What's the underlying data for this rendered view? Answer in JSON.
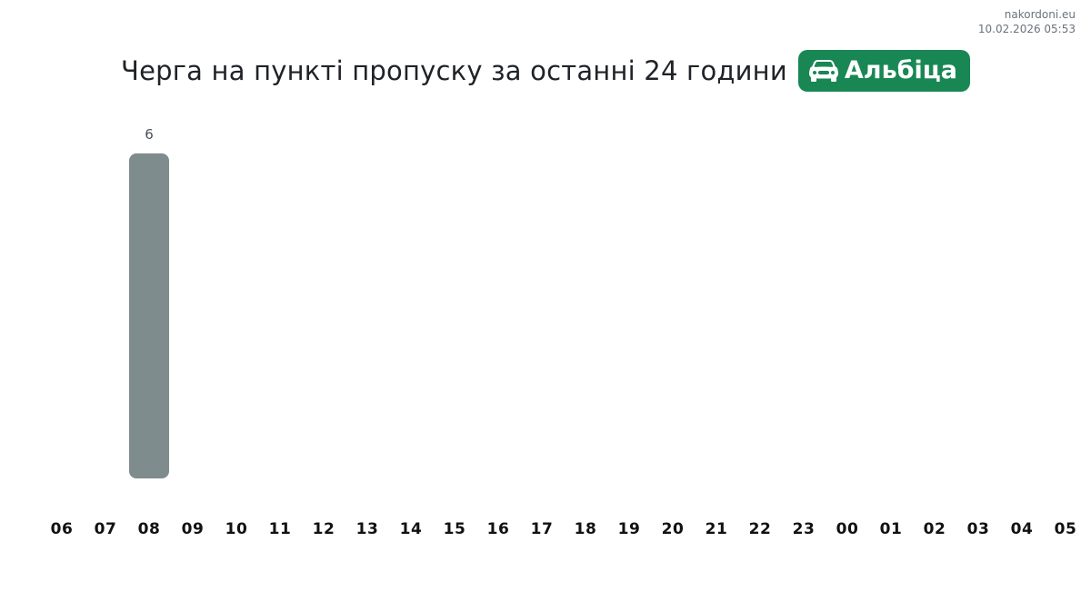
{
  "credits": {
    "site": "nakordoni.eu",
    "timestamp": "10.02.2026 05:53"
  },
  "badge": {
    "label": "Альбіца",
    "icon": "car-front-icon",
    "color": "#198754",
    "text_color": "#ffffff"
  },
  "chart_data": {
    "type": "bar",
    "title": "Черга на пункті пропуску за останні 24 години",
    "categories": [
      "06",
      "07",
      "08",
      "09",
      "10",
      "11",
      "12",
      "13",
      "14",
      "15",
      "16",
      "17",
      "18",
      "19",
      "20",
      "21",
      "22",
      "23",
      "00",
      "01",
      "02",
      "03",
      "04",
      "05"
    ],
    "values": [
      0,
      0,
      6,
      0,
      0,
      0,
      0,
      0,
      0,
      0,
      0,
      0,
      0,
      0,
      0,
      0,
      0,
      0,
      0,
      0,
      0,
      0,
      0,
      0
    ],
    "xlabel": "",
    "ylabel": "",
    "ylim": [
      0,
      6
    ],
    "grid": false,
    "legend": false,
    "value_labels": true,
    "bar_color": "#7f8c8d",
    "value_label_color": "#495057",
    "tick_label_color": "#111111"
  }
}
